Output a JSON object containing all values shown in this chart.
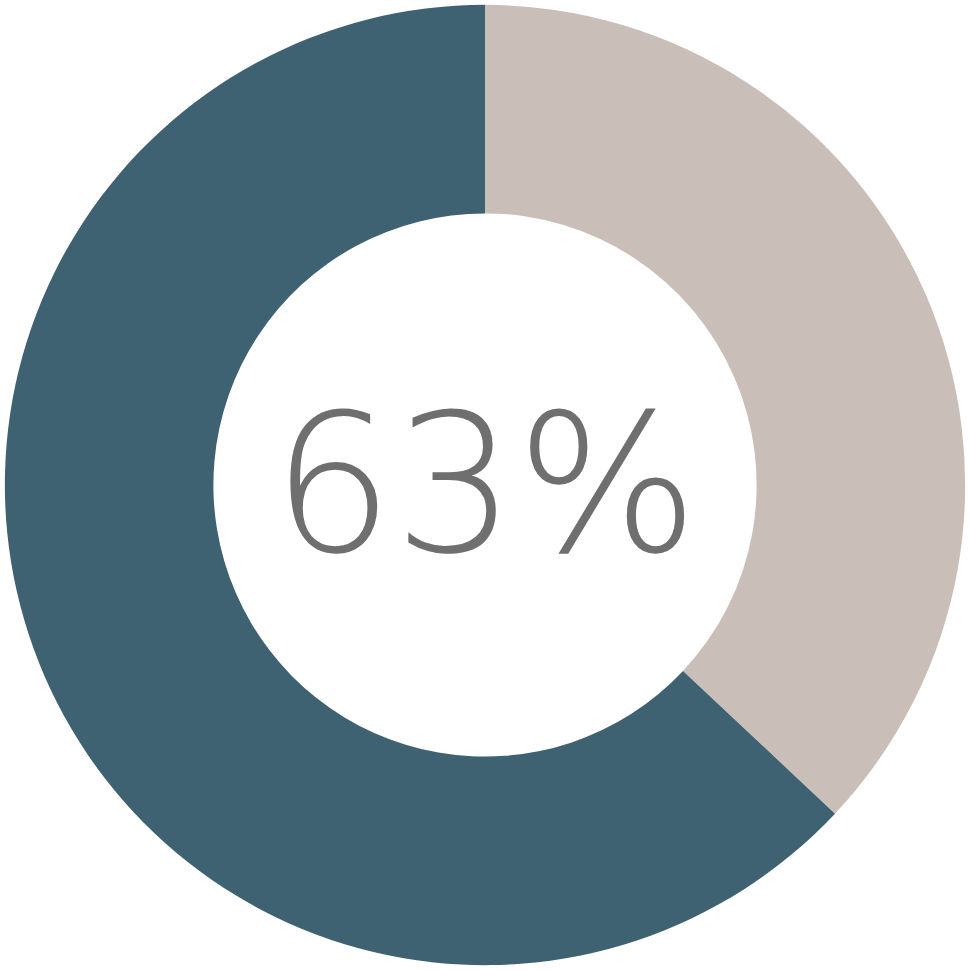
{
  "chart_data": {
    "type": "donut",
    "categories": [
      null,
      null
    ],
    "values": [
      37,
      63
    ],
    "colors": [
      "#c9bfb8",
      "#3f6272"
    ],
    "annotations": [
      "63%"
    ]
  }
}
